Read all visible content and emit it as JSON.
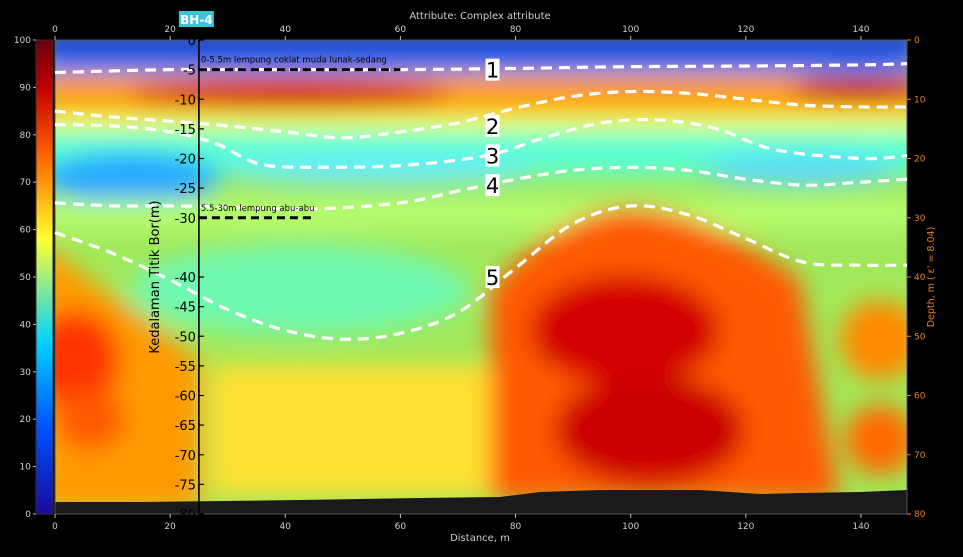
{
  "chart_data": {
    "type": "heatmap",
    "title": "Attribute:  Complex attribute",
    "xlabel": "Distance, m",
    "ylabel_right": "Depth, m ( ε' = 8.04)",
    "xlim": [
      0,
      148
    ],
    "xticks": [
      0,
      20,
      40,
      60,
      80,
      100,
      120,
      140
    ],
    "depth_lim": [
      0,
      80
    ],
    "depth_ticks": [
      0,
      10,
      20,
      30,
      40,
      50,
      60,
      70,
      80
    ],
    "colorbar": {
      "range": [
        0,
        100
      ],
      "ticks": [
        0,
        10,
        20,
        30,
        40,
        50,
        60,
        70,
        80,
        90,
        100
      ],
      "colors": [
        "#1a0a9c",
        "#0050ff",
        "#00d0ff",
        "#ffff30",
        "#ff6000",
        "#c00000",
        "#6a0010"
      ]
    },
    "borehole": {
      "label": "BH-4",
      "x": 25,
      "ylabel": "Kedalaman Titik Bor(m)",
      "depth_ticks": [
        0,
        -5,
        -10,
        -15,
        -20,
        -25,
        -30,
        -40,
        -45,
        -50,
        -55,
        -60,
        -65,
        -70,
        -75,
        -80
      ],
      "layers": [
        {
          "text": "0-5.5m lempung coklat muda lunak-sedang",
          "depth": 5,
          "x_end": 60
        },
        {
          "text": "5.5-30m lempung abu-abu",
          "depth": 30,
          "x_end": 45
        }
      ]
    },
    "boundaries": [
      {
        "label": "1",
        "label_x": 76,
        "label_depth": 5,
        "x": [
          0,
          20,
          40,
          60,
          80,
          100,
          120,
          140,
          148
        ],
        "depth": [
          5.5,
          5.0,
          5.0,
          5.0,
          4.8,
          4.5,
          4.4,
          4.2,
          4.0
        ]
      },
      {
        "label": "2",
        "label_x": 76,
        "label_depth": 14.5,
        "x": [
          0,
          10,
          20,
          30,
          40,
          50,
          60,
          70,
          80,
          90,
          100,
          110,
          120,
          130,
          140,
          148
        ],
        "depth": [
          12.0,
          13.0,
          13.7,
          14.5,
          15.5,
          16.5,
          15.5,
          14.0,
          11.5,
          9.5,
          8.7,
          9.0,
          10.0,
          11.0,
          11.3,
          11.3
        ]
      },
      {
        "label": "3",
        "label_x": 76,
        "label_depth": 19.5,
        "x": [
          0,
          10,
          20,
          28,
          33,
          37,
          45,
          60,
          75,
          85,
          95,
          105,
          115,
          125,
          140,
          148
        ],
        "depth": [
          14.3,
          14.5,
          15.5,
          17.5,
          20.0,
          21.2,
          21.5,
          21.2,
          19.5,
          16.5,
          14.0,
          13.5,
          15.0,
          18.5,
          20.0,
          19.5
        ]
      },
      {
        "label": "4",
        "label_x": 76,
        "label_depth": 24.5,
        "x": [
          0,
          10,
          20,
          30,
          45,
          60,
          70,
          80,
          90,
          100,
          110,
          120,
          130,
          140,
          148
        ],
        "depth": [
          27.5,
          28.0,
          28.0,
          28.2,
          28.5,
          27.5,
          25.5,
          23.5,
          22.0,
          21.5,
          22.0,
          23.5,
          24.5,
          24.0,
          23.5
        ]
      },
      {
        "label": "5",
        "label_x": 76,
        "label_depth": 40,
        "x": [
          0,
          10,
          20,
          30,
          40,
          50,
          60,
          70,
          80,
          90,
          100,
          110,
          120,
          130,
          140,
          148
        ],
        "depth": [
          32.5,
          36.0,
          40.5,
          45.5,
          49.0,
          50.5,
          49.5,
          46.0,
          38.5,
          31.0,
          28.0,
          29.5,
          33.5,
          37.5,
          38.0,
          38.0
        ]
      }
    ]
  }
}
